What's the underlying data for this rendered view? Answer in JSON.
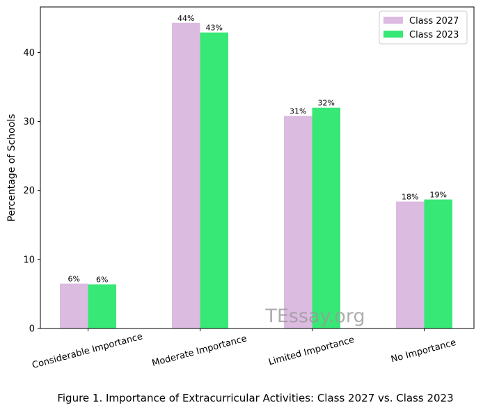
{
  "chart_data": {
    "type": "bar",
    "categories": [
      "Considerable Importance",
      "Moderate Importance",
      "Limited Importance",
      "No Importance"
    ],
    "series": [
      {
        "name": "Class 2027",
        "values": [
          6.5,
          44.3,
          30.8,
          18.4
        ],
        "data_labels": [
          "6%",
          "44%",
          "31%",
          "18%"
        ],
        "color": "#dcbbe1"
      },
      {
        "name": "Class 2023",
        "values": [
          6.4,
          42.9,
          32.0,
          18.7
        ],
        "data_labels": [
          "6%",
          "43%",
          "32%",
          "19%"
        ],
        "color": "#37e876"
      }
    ],
    "ylabel": "Percentage of Schools",
    "xlabel": "",
    "ylim": [
      0,
      46.6
    ],
    "y_ticks": [
      0,
      10,
      20,
      30,
      40
    ],
    "x_tick_rotation": 15,
    "grid": false,
    "legend_position": "top-right",
    "watermark": "TEssay.org"
  },
  "caption": "Figure 1. Importance of Extracurricular Activities: Class 2027 vs. Class 2023"
}
